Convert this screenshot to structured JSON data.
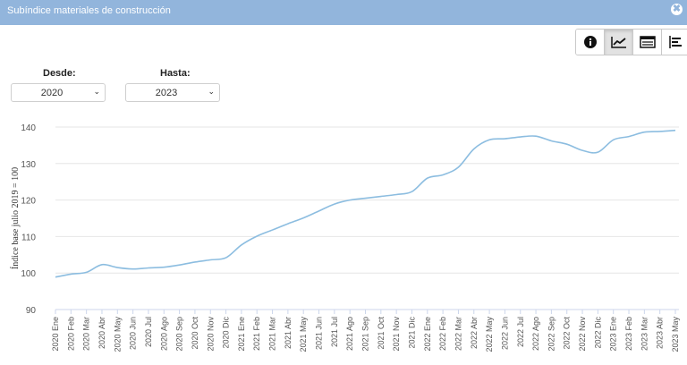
{
  "window": {
    "title": "Subíndice materiales de construcción",
    "close_symbol": "✖"
  },
  "toolbar": {
    "buttons": [
      "info-icon",
      "line-chart-icon",
      "table-icon",
      "bar-chart-icon"
    ],
    "active": "line-chart-icon"
  },
  "filters": {
    "from_label": "Desde:",
    "from_value": "2020",
    "to_label": "Hasta:",
    "to_value": "2023"
  },
  "colors": {
    "line": "#8cbde0",
    "titlebar": "#92b5dc",
    "grid": "#e6e6e6"
  },
  "chart_data": {
    "type": "line",
    "title": "",
    "xlabel": "",
    "ylabel": "Índice base julio 2019 = 100",
    "ylim": [
      90,
      140
    ],
    "yticks": [
      90,
      100,
      110,
      120,
      130,
      140
    ],
    "categories": [
      "2020 Ene",
      "2020 Feb",
      "2020 Mar",
      "2020 Abr",
      "2020 May",
      "2020 Jun",
      "2020 Jul",
      "2020 Ago",
      "2020 Sep",
      "2020 Oct",
      "2020 Nov",
      "2020 Dic",
      "2021 Ene",
      "2021 Feb",
      "2021 Mar",
      "2021 Abr",
      "2021 May",
      "2021 Jun",
      "2021 Jul",
      "2021 Ago",
      "2021 Sep",
      "2021 Oct",
      "2021 Nov",
      "2021 Dic",
      "2022 Ene",
      "2022 Feb",
      "2022 Mar",
      "2022 Abr",
      "2022 May",
      "2022 Jun",
      "2022 Jul",
      "2022 Ago",
      "2022 Sep",
      "2022 Oct",
      "2022 Nov",
      "2022 Dic",
      "2023 Ene",
      "2023 Feb",
      "2023 Mar",
      "2023 Abr",
      "2023 May"
    ],
    "series": [
      {
        "name": "Subíndice materiales de construcción",
        "values": [
          98.9,
          99.7,
          100.2,
          102.3,
          101.5,
          101.1,
          101.4,
          101.6,
          102.2,
          103.0,
          103.6,
          104.2,
          107.7,
          110.1,
          111.8,
          113.5,
          115.1,
          117.0,
          118.9,
          120.0,
          120.5,
          121.0,
          121.5,
          122.3,
          126.0,
          126.9,
          129.0,
          134.0,
          136.5,
          136.8,
          137.3,
          137.5,
          136.2,
          135.3,
          133.6,
          133.1,
          136.5,
          137.4,
          138.6,
          138.8,
          139.1
        ]
      }
    ]
  }
}
